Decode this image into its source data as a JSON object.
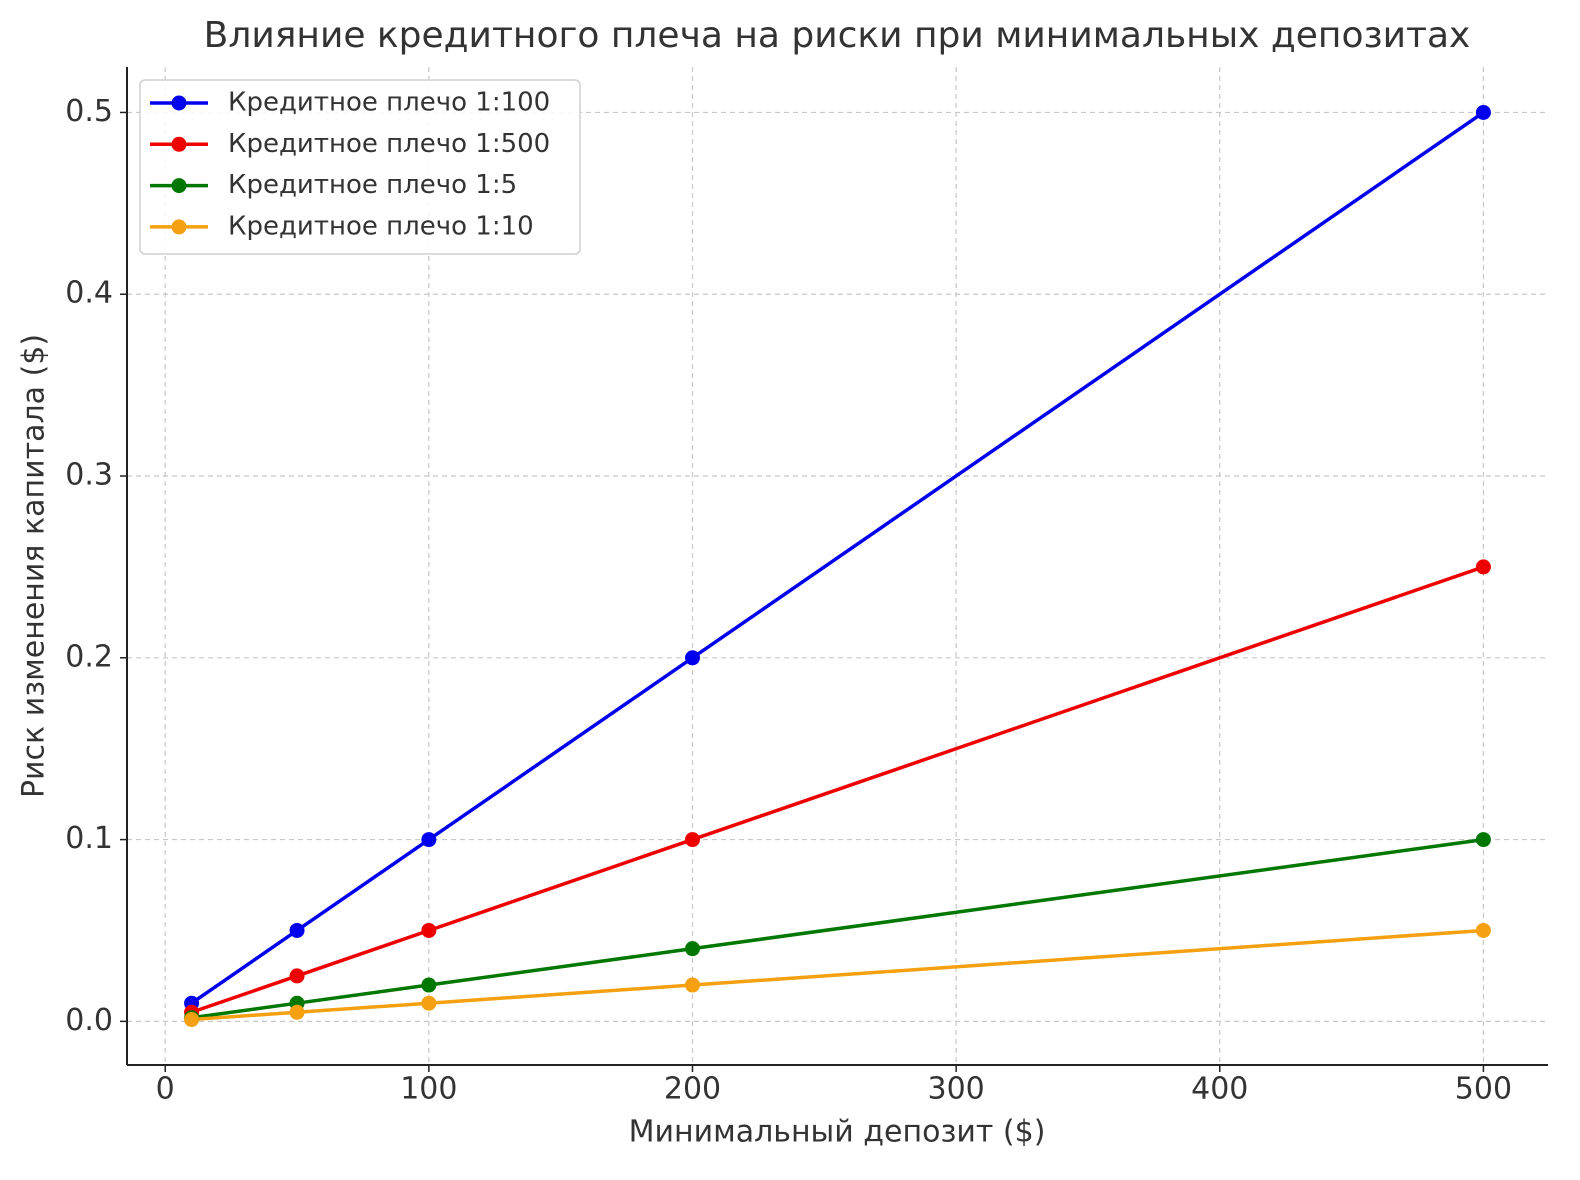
{
  "chart_data": {
    "type": "line",
    "title": "Влияние кредитного плеча на риски при минимальных депозитах",
    "x_label": "Минимальный депозит ($)",
    "y_label": "Риск изменения капитала ($)",
    "x": [
      10,
      50,
      100,
      200,
      500
    ],
    "series": [
      {
        "name": "Кредитное плечо 1:100",
        "color": "#0000ee",
        "values": [
          0.01,
          0.05,
          0.1,
          0.2,
          0.5
        ]
      },
      {
        "name": "Кредитное плечо 1:500",
        "color": "#ee0000",
        "values": [
          0.005,
          0.025,
          0.05,
          0.1,
          0.25
        ]
      },
      {
        "name": "Кредитное плечо 1:5",
        "color": "#007700",
        "values": [
          0.002,
          0.01,
          0.02,
          0.04,
          0.1
        ]
      },
      {
        "name": "Кредитное плечо 1:10",
        "color": "#f5a010",
        "values": [
          0.001,
          0.005,
          0.01,
          0.02,
          0.05
        ]
      }
    ],
    "xlim": [
      -14.5,
      524.5
    ],
    "ylim": [
      -0.024,
      0.525
    ],
    "xticks": [
      0,
      100,
      200,
      300,
      400,
      500
    ],
    "yticks": [
      {
        "value": 0,
        "label": "0.0"
      },
      0.1,
      0.2,
      0.3,
      0.4,
      0.5
    ],
    "grid": true,
    "legend": "upper left"
  }
}
